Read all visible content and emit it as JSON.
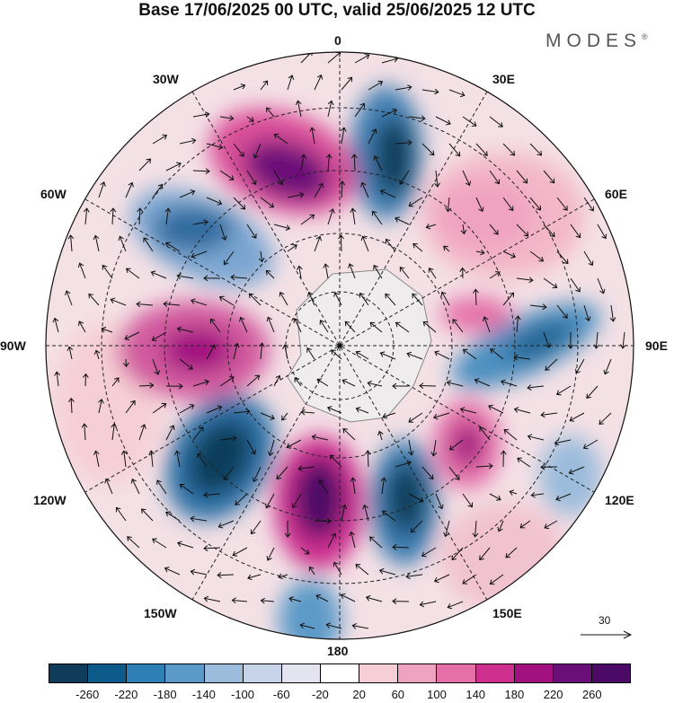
{
  "title": "Base 17/06/2025 00 UTC, valid 25/06/2025 12 UTC",
  "brand": "MODES",
  "brand_mark": "®",
  "longitude_labels": {
    "top": "0",
    "upper_left": "30W",
    "upper_right": "30E",
    "left_upper": "60W",
    "right_upper": "60E",
    "left": "90W",
    "right": "90E",
    "left_lower": "120W",
    "right_lower": "120E",
    "lower_left": "150W",
    "lower_right": "150E",
    "bottom": "180"
  },
  "reference_vector": {
    "value": "30"
  },
  "colorbar": {
    "ticks": [
      "-260",
      "-220",
      "-180",
      "-140",
      "-100",
      "-60",
      "-20",
      "20",
      "60",
      "100",
      "140",
      "180",
      "220",
      "260"
    ],
    "colors": [
      "#0e3c5a",
      "#0b5a8a",
      "#2e7fb5",
      "#5b9ac8",
      "#9bbcdb",
      "#c7d3e8",
      "#e4e4f1",
      "#ffffff",
      "#f6cfd6",
      "#f0a3c0",
      "#e570a8",
      "#cc2f8e",
      "#a20f7f",
      "#6a0f78",
      "#4b0a66"
    ]
  }
}
